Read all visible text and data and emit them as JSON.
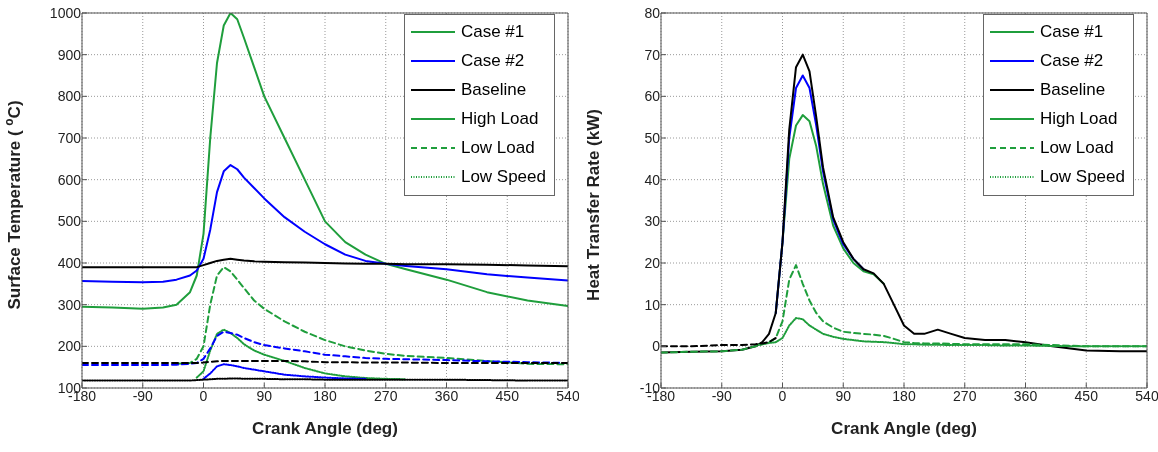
{
  "chart_data": [
    {
      "type": "line",
      "xlabel": "Crank Angle (deg)",
      "ylabel": "Surface Temperature ( $^{o}$C)",
      "xlim": [
        -180,
        540
      ],
      "xticks": [
        -180,
        -90,
        0,
        90,
        180,
        270,
        360,
        450,
        540
      ],
      "ylim": [
        100,
        1000
      ],
      "yticks": [
        100,
        200,
        300,
        400,
        500,
        600,
        700,
        800,
        900,
        1000
      ],
      "grid": true,
      "legend": "top right",
      "marker": "none",
      "x": [
        -180,
        -135,
        -90,
        -60,
        -40,
        -20,
        -10,
        0,
        10,
        20,
        30,
        40,
        50,
        60,
        75,
        90,
        120,
        150,
        180,
        210,
        240,
        270,
        300,
        360,
        420,
        480,
        540
      ],
      "series": [
        {
          "name": "Case #1",
          "color": "#1f9e3c",
          "line_style": "solid",
          "values": [
            295,
            293,
            290,
            293,
            300,
            330,
            370,
            470,
            700,
            880,
            970,
            1000,
            985,
            940,
            870,
            800,
            700,
            600,
            500,
            450,
            420,
            398,
            385,
            360,
            330,
            310,
            297
          ]
        },
        {
          "name": "Case #2",
          "color": "#0000ff",
          "line_style": "solid",
          "values": [
            357,
            355,
            354,
            355,
            360,
            370,
            382,
            410,
            480,
            570,
            620,
            635,
            625,
            605,
            580,
            555,
            510,
            475,
            445,
            420,
            405,
            398,
            393,
            385,
            373,
            365,
            358
          ]
        },
        {
          "name": "Baseline",
          "color": "#000000",
          "line_style": "solid",
          "values": [
            390,
            390,
            390,
            390,
            390,
            390,
            390,
            395,
            400,
            405,
            408,
            410,
            408,
            406,
            404,
            403,
            402,
            401,
            400,
            399,
            398,
            398,
            397,
            397,
            396,
            394,
            392
          ]
        },
        {
          "name": "High Load",
          "color": "#1f9e3c",
          "line_style": "solid",
          "values": [
            null,
            null,
            null,
            null,
            null,
            null,
            null,
            null,
            null,
            null,
            null,
            null,
            null,
            null,
            null,
            null,
            null,
            null,
            null,
            null,
            null,
            null,
            null,
            null,
            null,
            null,
            null
          ]
        },
        {
          "name": "Low Load",
          "color": "#1f9e3c",
          "line_style": "dashed",
          "values": [
            null,
            null,
            null,
            null,
            158,
            160,
            170,
            200,
            300,
            370,
            390,
            380,
            360,
            340,
            310,
            290,
            260,
            235,
            215,
            200,
            190,
            182,
            177,
            172,
            165,
            158,
            157
          ]
        },
        {
          "name": "Low Speed",
          "color": "#1f9e3c",
          "line_style": "dotted",
          "values": [
            null,
            null,
            null,
            null,
            null,
            null,
            125,
            140,
            190,
            230,
            240,
            232,
            220,
            205,
            190,
            180,
            165,
            148,
            135,
            128,
            124,
            122,
            121,
            null,
            null,
            null,
            null
          ]
        },
        {
          "color": "#0000ff",
          "line_style": "dashed",
          "values": [
            155,
            155,
            155,
            155,
            156,
            158,
            160,
            170,
            195,
            225,
            235,
            232,
            228,
            220,
            210,
            203,
            195,
            188,
            180,
            176,
            172,
            170,
            169,
            167,
            164,
            162,
            160
          ]
        },
        {
          "color": "#000000",
          "line_style": "dashed",
          "values": [
            160,
            160,
            160,
            160,
            160,
            160,
            160,
            161,
            163,
            164,
            165,
            165,
            165,
            165,
            165,
            165,
            165,
            164,
            162,
            162,
            161,
            161,
            161,
            160,
            160,
            160,
            160
          ]
        },
        {
          "color": "#0000ff",
          "line_style": "dotted",
          "values": [
            null,
            null,
            null,
            null,
            null,
            null,
            null,
            122,
            135,
            152,
            157,
            155,
            152,
            148,
            144,
            140,
            132,
            128,
            125,
            123,
            122,
            null,
            null,
            null,
            null,
            null,
            null
          ]
        },
        {
          "color": "#000000",
          "line_style": "dotted",
          "values": [
            118,
            118,
            118,
            118,
            118,
            118,
            119,
            120,
            121,
            122,
            122,
            123,
            123,
            122,
            122,
            122,
            121,
            121,
            120,
            120,
            120,
            120,
            120,
            120,
            119,
            118,
            118
          ]
        }
      ]
    },
    {
      "type": "line",
      "xlabel": "Crank Angle (deg)",
      "ylabel": "Heat Transfer Rate (kW)",
      "xlim": [
        -180,
        540
      ],
      "xticks": [
        -180,
        -90,
        0,
        90,
        180,
        270,
        360,
        450,
        540
      ],
      "ylim": [
        -10,
        80
      ],
      "yticks": [
        -10,
        0,
        10,
        20,
        30,
        40,
        50,
        60,
        70,
        80
      ],
      "grid": true,
      "legend": "top right",
      "marker": "none",
      "x": [
        -180,
        -135,
        -90,
        -60,
        -40,
        -30,
        -20,
        -10,
        0,
        10,
        20,
        30,
        40,
        50,
        60,
        75,
        90,
        105,
        120,
        135,
        150,
        165,
        180,
        195,
        210,
        230,
        250,
        270,
        300,
        330,
        360,
        400,
        450,
        500,
        540
      ],
      "series": [
        {
          "name": "Case #1",
          "color": "#1f9e3c",
          "line_style": "solid",
          "values": [
            null,
            null,
            null,
            null,
            null,
            null,
            null,
            8,
            25,
            45,
            53,
            55.5,
            54,
            48,
            39,
            29,
            23.5,
            20,
            18,
            17.3,
            15,
            null,
            null,
            null,
            null,
            null,
            null,
            null,
            null,
            null,
            null,
            null,
            null,
            null,
            null
          ]
        },
        {
          "name": "Case #2",
          "color": "#0000ff",
          "line_style": "solid",
          "values": [
            null,
            null,
            null,
            null,
            null,
            null,
            null,
            8,
            25,
            50,
            62,
            65,
            62,
            53,
            42,
            30.5,
            24.5,
            21,
            18.5,
            null,
            null,
            null,
            null,
            null,
            null,
            null,
            null,
            null,
            null,
            null,
            null,
            null,
            null,
            null,
            null
          ]
        },
        {
          "name": "Baseline",
          "color": "#000000",
          "line_style": "solid",
          "values": [
            -1.5,
            -1.3,
            -1.2,
            -0.8,
            0,
            1,
            3,
            8,
            25,
            52,
            67,
            70,
            66,
            55,
            43,
            31,
            25,
            21,
            18.5,
            17.5,
            15,
            10,
            5,
            3,
            3,
            4,
            3,
            2,
            1.5,
            1.5,
            1,
            0,
            -1,
            -1.2,
            -1.2
          ]
        },
        {
          "name": "High Load",
          "color": "#1f9e3c",
          "line_style": "solid",
          "values": [
            null,
            null,
            null,
            null,
            null,
            null,
            null,
            null,
            null,
            null,
            null,
            null,
            null,
            null,
            null,
            null,
            null,
            null,
            null,
            null,
            null,
            null,
            null,
            null,
            null,
            null,
            null,
            null,
            null,
            null,
            null,
            null,
            null,
            null,
            null
          ]
        },
        {
          "name": "Low Load",
          "color": "#1f9e3c",
          "line_style": "dashed",
          "values": [
            -1.5,
            -1.3,
            -1.2,
            -0.8,
            0,
            0.5,
            1,
            2,
            6,
            16,
            19.5,
            15,
            11,
            8,
            6,
            4.5,
            3.5,
            3.2,
            3,
            2.8,
            2.5,
            1.8,
            1,
            0.8,
            0.7,
            0.7,
            0.6,
            0.5,
            0.5,
            0.5,
            0.5,
            0.3,
            0,
            0,
            0
          ]
        },
        {
          "name": "Low Speed",
          "color": "#1f9e3c",
          "line_style": "dotted",
          "values": [
            null,
            null,
            null,
            null,
            0.3,
            0.5,
            0.8,
            1,
            2,
            5,
            6.8,
            6.5,
            5,
            4,
            3,
            2.3,
            1.8,
            1.5,
            1.2,
            1.1,
            1,
            0.8,
            0.5,
            0.5,
            0.4,
            0.4,
            0.3,
            0.3,
            0.3,
            0.2,
            0.2,
            0.1,
            0,
            0,
            0
          ]
        },
        {
          "color": "#000000",
          "line_style": "dashed",
          "values": [
            0,
            0,
            0.3,
            0.3,
            0.5,
            0.7,
            1,
            2,
            null,
            null,
            null,
            null,
            null,
            null,
            null,
            null,
            null,
            null,
            null,
            null,
            null,
            null,
            null,
            null,
            null,
            null,
            null,
            null,
            null,
            null,
            null,
            null,
            null,
            null,
            null
          ]
        }
      ]
    }
  ]
}
